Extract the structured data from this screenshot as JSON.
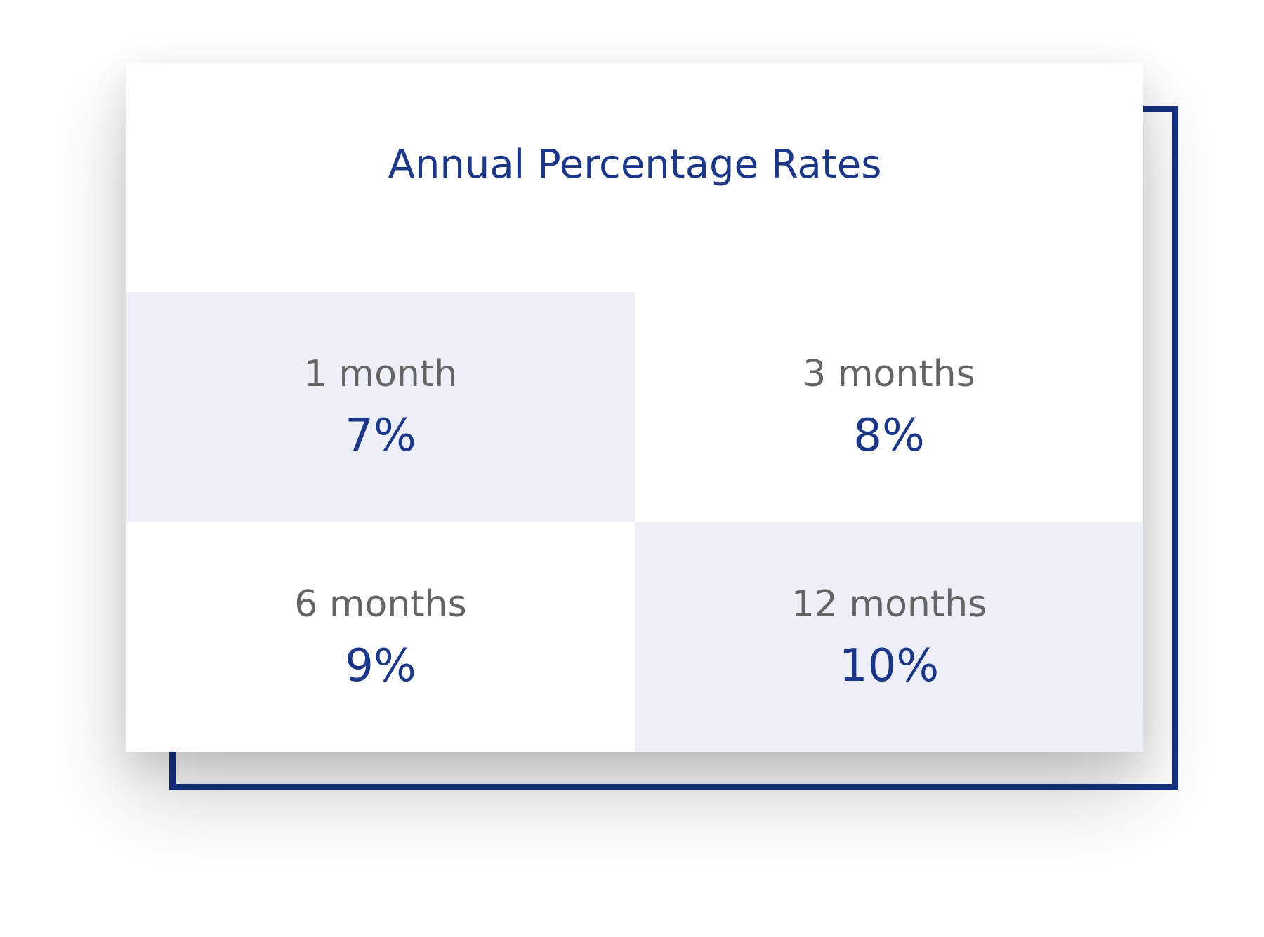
{
  "title": "Annual Percentage Rates",
  "rates": [
    {
      "period": "1 month",
      "rate": "7%"
    },
    {
      "period": "3 months",
      "rate": "8%"
    },
    {
      "period": "6 months",
      "rate": "9%"
    },
    {
      "period": "12 months",
      "rate": "10%"
    }
  ],
  "colors": {
    "accent": "#1d3788",
    "frame": "#14317f",
    "label": "#646464",
    "shaded_cell": "#eceff7",
    "background": "#ffffff"
  }
}
